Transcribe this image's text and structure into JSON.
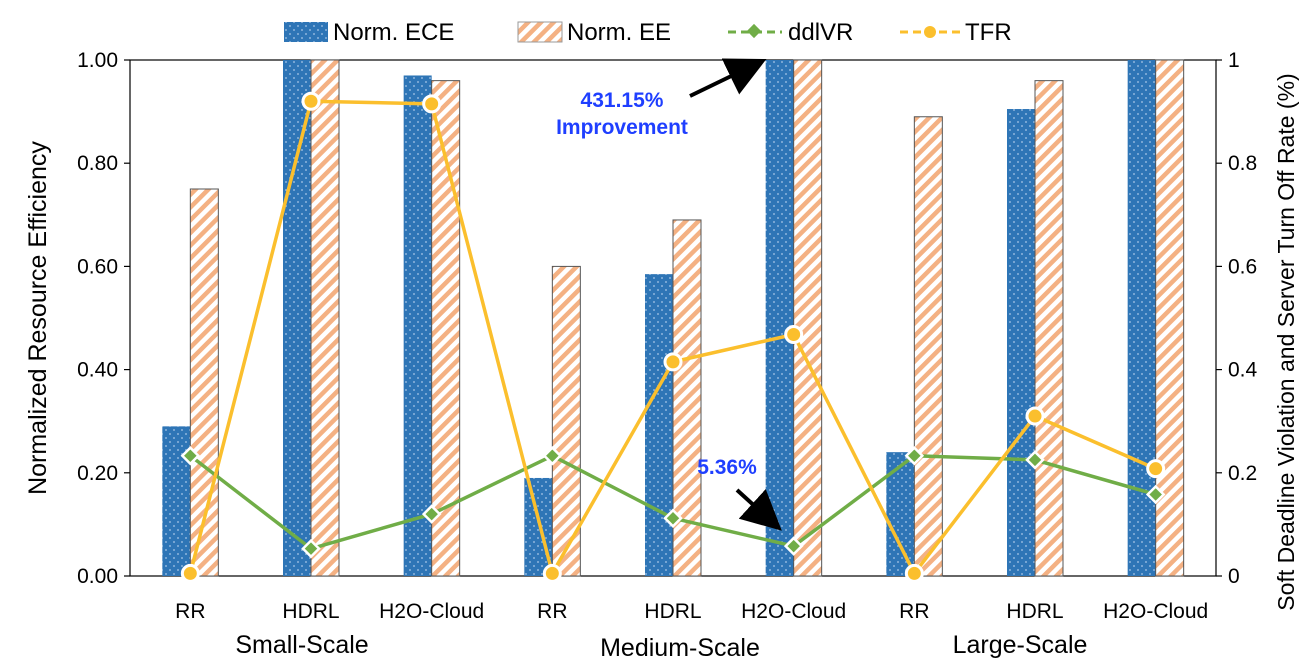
{
  "chart_data": {
    "type": "bar",
    "title": "",
    "ylabel": "Normalized Resource Efficiency",
    "y2label": "Soft Deadline Violation  and Server Turn Off Rate (%)",
    "ylim": [
      0,
      1
    ],
    "y2lim": [
      0,
      1
    ],
    "yticks": [
      "0.00",
      "0.20",
      "0.40",
      "0.60",
      "0.80",
      "1.00"
    ],
    "y2ticks": [
      "0",
      "0.2",
      "0.4",
      "0.6",
      "0.8",
      "1"
    ],
    "categories": [
      "RR",
      "HDRL",
      "H2O-Cloud",
      "RR",
      "HDRL",
      "H2O-Cloud",
      "RR",
      "HDRL",
      "H2O-Cloud"
    ],
    "groups": [
      "Small-Scale",
      "Medium-Scale",
      "Large-Scale"
    ],
    "legend_position": "top",
    "series": [
      {
        "name": "Norm. ECE",
        "kind": "bar",
        "axis": "left",
        "color": "#2e75b6",
        "values": [
          0.29,
          1.0,
          0.97,
          0.19,
          0.585,
          1.0,
          0.24,
          0.905,
          1.0
        ]
      },
      {
        "name": "Norm. EE",
        "kind": "bar",
        "axis": "left",
        "color": "#f4b183",
        "values": [
          0.75,
          1.0,
          0.96,
          0.6,
          0.69,
          1.0,
          0.89,
          0.96,
          1.0
        ]
      },
      {
        "name": "ddlVR",
        "kind": "line",
        "axis": "right",
        "color": "#70ad47",
        "values": [
          0.233,
          0.053,
          0.12,
          0.233,
          0.112,
          0.058,
          0.233,
          0.225,
          0.158
        ]
      },
      {
        "name": "TFR",
        "kind": "line",
        "axis": "right",
        "color": "#fbbf2d",
        "values": [
          0.005,
          0.92,
          0.915,
          0.005,
          0.415,
          0.468,
          0.005,
          0.31,
          0.208
        ]
      }
    ],
    "annotations": [
      {
        "text": "431.15%",
        "text2": "Improvement",
        "color": "#1f3fff"
      },
      {
        "text": "5.36%",
        "color": "#1f3fff"
      }
    ]
  }
}
